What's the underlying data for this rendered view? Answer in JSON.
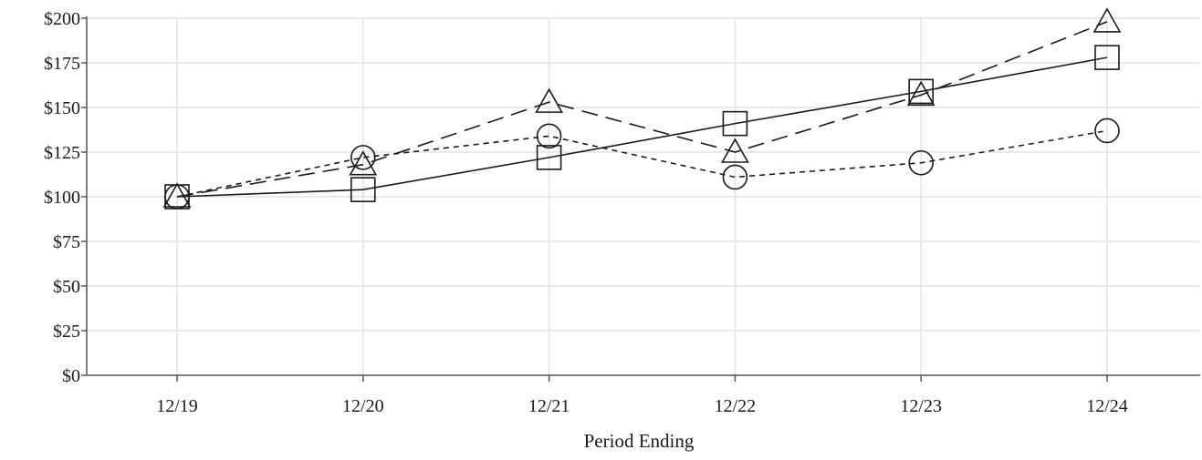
{
  "chart_data": {
    "type": "line",
    "title": "",
    "xlabel": "Period Ending",
    "ylabel": "",
    "categories": [
      "12/19",
      "12/20",
      "12/21",
      "12/22",
      "12/23",
      "12/24"
    ],
    "ylim": [
      0,
      200
    ],
    "yticks": [
      0,
      25,
      50,
      75,
      100,
      125,
      150,
      175,
      200
    ],
    "ytick_labels": [
      "$0",
      "$25",
      "$50",
      "$75",
      "$100",
      "$125",
      "$150",
      "$175",
      "$200"
    ],
    "grid": true,
    "legend": "none",
    "series": [
      {
        "marker": "square",
        "line_style": "solid",
        "values": [
          100,
          104,
          122,
          141,
          159,
          178
        ]
      },
      {
        "marker": "triangle",
        "line_style": "long-dash",
        "values": [
          100,
          118,
          153,
          125,
          157,
          198
        ]
      },
      {
        "marker": "circle",
        "line_style": "short-dash",
        "values": [
          100,
          122,
          134,
          111,
          119,
          137
        ]
      }
    ]
  }
}
